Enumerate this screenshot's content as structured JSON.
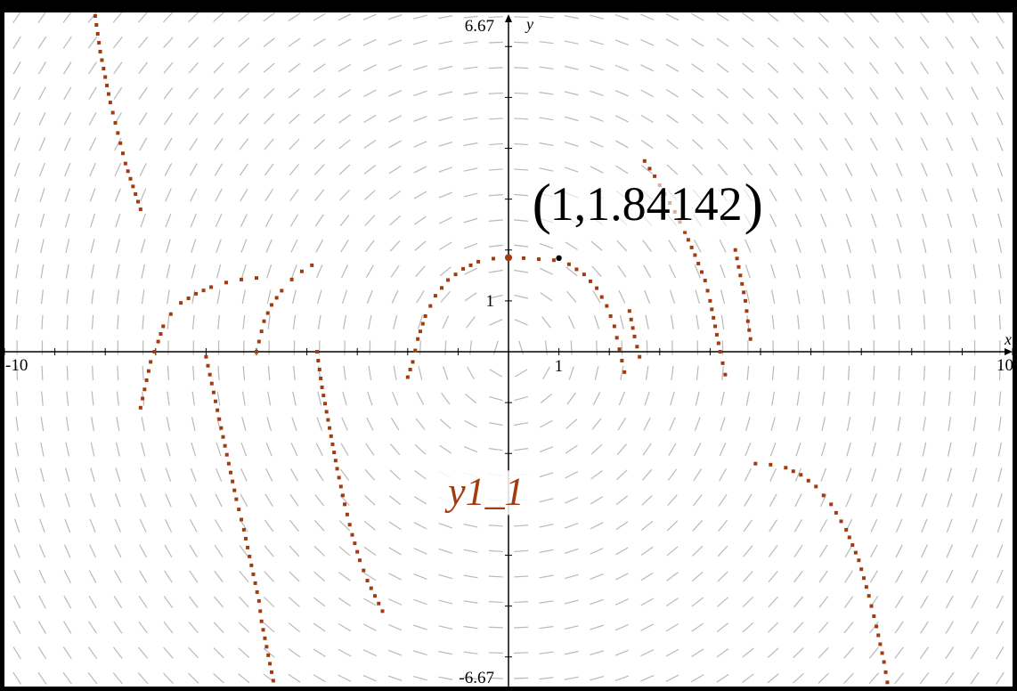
{
  "colors": {
    "background": "#ffffff",
    "slope_field": "#b9b9b9",
    "axis": "#000000",
    "solution": "#a33a10",
    "point": "#000000",
    "frame": "#000000"
  },
  "chart_data": {
    "type": "scatter",
    "title": "",
    "xlabel": "x",
    "ylabel": "y",
    "xlim": [
      -10,
      10
    ],
    "ylim": [
      -6.67,
      6.67
    ],
    "tick_labels": {
      "x_min": "-10",
      "x_max": "10",
      "x_one": "1",
      "y_max": "6.67",
      "y_min": "-6.67",
      "y_one": "1"
    },
    "slope_field": {
      "visible": true,
      "function": "dy/dx = -x / y",
      "spacing": 0.5
    },
    "highlight_point": {
      "x": 1,
      "y": 1.84142,
      "label": "(1,1.84142)",
      "label_text": "1,1.84142"
    },
    "curve_label": "y1_1",
    "series": [
      {
        "name": "y1_1",
        "marker": "square",
        "curves": [
          [
            [
              -8.2,
              6.6
            ],
            [
              -8.1,
              5.9
            ],
            [
              -8.0,
              5.4
            ],
            [
              -7.9,
              4.9
            ],
            [
              -7.8,
              4.5
            ],
            [
              -7.7,
              4.1
            ],
            [
              -7.6,
              3.7
            ],
            [
              -7.5,
              3.4
            ],
            [
              -7.4,
              3.1
            ],
            [
              -7.3,
              2.8
            ]
          ],
          [
            [
              -5.0,
              1.45
            ],
            [
              -5.3,
              1.42
            ],
            [
              -5.6,
              1.36
            ],
            [
              -5.9,
              1.27
            ],
            [
              -6.2,
              1.14
            ],
            [
              -6.5,
              0.96
            ],
            [
              -6.7,
              0.74
            ],
            [
              -6.85,
              0.5
            ],
            [
              -6.95,
              0.2
            ],
            [
              -7.1,
              -0.2
            ],
            [
              -7.3,
              -1.1
            ]
          ],
          [
            [
              -6.0,
              -0.1
            ],
            [
              -5.85,
              -0.8
            ],
            [
              -5.7,
              -1.5
            ],
            [
              -5.55,
              -2.2
            ],
            [
              -5.4,
              -2.9
            ],
            [
              -5.25,
              -3.5
            ],
            [
              -5.1,
              -4.2
            ],
            [
              -4.95,
              -4.9
            ],
            [
              -4.9,
              -5.3
            ],
            [
              -4.8,
              -5.8
            ],
            [
              -4.7,
              -6.3
            ],
            [
              -4.6,
              -6.8
            ],
            [
              -4.5,
              -7.3
            ],
            [
              -4.4,
              -7.8
            ],
            [
              -4.3,
              -8.3
            ],
            [
              -4.2,
              -8.8
            ],
            [
              -4.1,
              -9.3
            ],
            [
              -4.0,
              -9.8
            ]
          ],
          [
            [
              -3.9,
              1.7
            ],
            [
              -4.1,
              1.58
            ],
            [
              -4.3,
              1.42
            ],
            [
              -4.5,
              1.2
            ],
            [
              -4.7,
              0.92
            ],
            [
              -4.85,
              0.6
            ],
            [
              -4.95,
              0.2
            ],
            [
              -5.0,
              0.0
            ]
          ],
          [
            [
              -3.8,
              0.0
            ],
            [
              -3.7,
              -0.7
            ],
            [
              -3.55,
              -1.5
            ],
            [
              -3.4,
              -2.3
            ],
            [
              -3.25,
              -3.0
            ],
            [
              -3.1,
              -3.6
            ],
            [
              -2.95,
              -4.1
            ],
            [
              -2.8,
              -4.5
            ],
            [
              -2.65,
              -4.8
            ],
            [
              -2.5,
              -5.1
            ]
          ],
          [
            [
              0.0,
              1.85
            ],
            [
              -0.3,
              1.83
            ],
            [
              -0.6,
              1.77
            ],
            [
              -0.9,
              1.63
            ],
            [
              -1.2,
              1.41
            ],
            [
              -1.45,
              1.1
            ],
            [
              -1.65,
              0.7
            ],
            [
              -1.8,
              0.25
            ],
            [
              -1.9,
              -0.2
            ],
            [
              -2.0,
              -0.5
            ]
          ],
          [
            [
              0.0,
              1.85
            ],
            [
              0.3,
              1.84
            ],
            [
              0.6,
              1.82
            ],
            [
              0.9,
              1.8
            ],
            [
              1.2,
              1.72
            ],
            [
              1.5,
              1.52
            ],
            [
              1.75,
              1.25
            ],
            [
              1.95,
              0.9
            ],
            [
              2.1,
              0.5
            ],
            [
              2.2,
              0.05
            ],
            [
              2.3,
              -0.4
            ]
          ],
          [
            [
              2.4,
              0.8
            ],
            [
              2.5,
              0.3
            ],
            [
              2.6,
              -0.1
            ]
          ],
          [
            [
              2.7,
              3.75
            ],
            [
              2.9,
              3.45
            ],
            [
              3.1,
              3.1
            ],
            [
              3.3,
              2.75
            ],
            [
              3.5,
              2.35
            ],
            [
              3.7,
              1.9
            ],
            [
              3.9,
              1.4
            ],
            [
              4.0,
              1.0
            ],
            [
              4.1,
              0.5
            ],
            [
              4.2,
              0.0
            ],
            [
              4.3,
              -0.45
            ]
          ],
          [
            [
              4.5,
              2.0
            ],
            [
              4.6,
              1.5
            ],
            [
              4.7,
              1.0
            ],
            [
              4.75,
              0.6
            ],
            [
              4.8,
              0.25
            ]
          ],
          [
            [
              4.9,
              -2.2
            ],
            [
              5.2,
              -2.22
            ],
            [
              5.5,
              -2.28
            ],
            [
              5.8,
              -2.42
            ],
            [
              6.1,
              -2.65
            ],
            [
              6.4,
              -3.0
            ],
            [
              6.7,
              -3.5
            ],
            [
              6.95,
              -4.1
            ],
            [
              7.15,
              -4.8
            ],
            [
              7.3,
              -5.4
            ],
            [
              7.45,
              -6.1
            ],
            [
              7.55,
              -6.7
            ]
          ]
        ]
      }
    ]
  }
}
